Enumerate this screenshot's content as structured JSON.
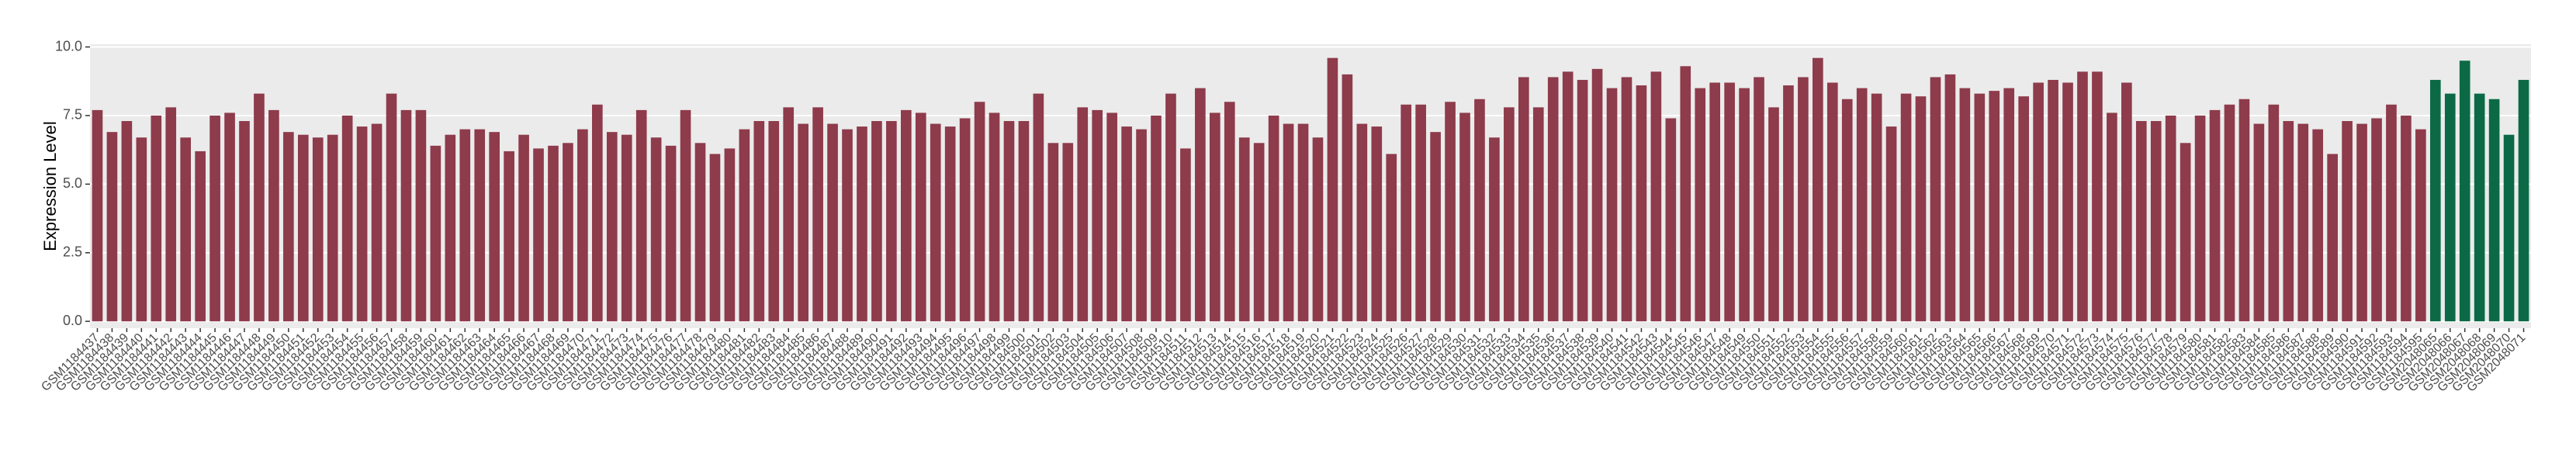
{
  "chart_data": {
    "type": "bar",
    "y_label": "Expression Level",
    "ylim": [
      -0.25,
      10.1
    ],
    "yticks": [
      {
        "value": 0,
        "label": "0.0"
      },
      {
        "value": 2.5,
        "label": "2.5"
      },
      {
        "value": 5,
        "label": "5.0"
      },
      {
        "value": 7.5,
        "label": "7.5"
      },
      {
        "value": 10,
        "label": "10.0"
      }
    ],
    "grid": true,
    "categories": [
      "GSM1184437",
      "GSM1184438",
      "GSM1184439",
      "GSM1184440",
      "GSM1184441",
      "GSM1184442",
      "GSM1184443",
      "GSM1184444",
      "GSM1184445",
      "GSM1184446",
      "GSM1184447",
      "GSM1184448",
      "GSM1184449",
      "GSM1184450",
      "GSM1184451",
      "GSM1184452",
      "GSM1184453",
      "GSM1184454",
      "GSM1184455",
      "GSM1184456",
      "GSM1184457",
      "GSM1184458",
      "GSM1184459",
      "GSM1184460",
      "GSM1184461",
      "GSM1184462",
      "GSM1184463",
      "GSM1184464",
      "GSM1184465",
      "GSM1184466",
      "GSM1184467",
      "GSM1184468",
      "GSM1184469",
      "GSM1184470",
      "GSM1184471",
      "GSM1184472",
      "GSM1184473",
      "GSM1184474",
      "GSM1184475",
      "GSM1184476",
      "GSM1184477",
      "GSM1184478",
      "GSM1184479",
      "GSM1184480",
      "GSM1184481",
      "GSM1184482",
      "GSM1184483",
      "GSM1184484",
      "GSM1184485",
      "GSM1184486",
      "GSM1184487",
      "GSM1184488",
      "GSM1184489",
      "GSM1184490",
      "GSM1184491",
      "GSM1184492",
      "GSM1184493",
      "GSM1184494",
      "GSM1184495",
      "GSM1184496",
      "GSM1184497",
      "GSM1184498",
      "GSM1184499",
      "GSM1184500",
      "GSM1184501",
      "GSM1184502",
      "GSM1184503",
      "GSM1184504",
      "GSM1184505",
      "GSM1184506",
      "GSM1184507",
      "GSM1184508",
      "GSM1184509",
      "GSM1184510",
      "GSM1184511",
      "GSM1184512",
      "GSM1184513",
      "GSM1184514",
      "GSM1184515",
      "GSM1184516",
      "GSM1184517",
      "GSM1184518",
      "GSM1184519",
      "GSM1184520",
      "GSM1184521",
      "GSM1184522",
      "GSM1184523",
      "GSM1184524",
      "GSM1184525",
      "GSM1184526",
      "GSM1184527",
      "GSM1184528",
      "GSM1184529",
      "GSM1184530",
      "GSM1184531",
      "GSM1184532",
      "GSM1184533",
      "GSM1184534",
      "GSM1184535",
      "GSM1184536",
      "GSM1184537",
      "GSM1184538",
      "GSM1184539",
      "GSM1184540",
      "GSM1184541",
      "GSM1184542",
      "GSM1184543",
      "GSM1184544",
      "GSM1184545",
      "GSM1184546",
      "GSM1184547",
      "GSM1184548",
      "GSM1184549",
      "GSM1184550",
      "GSM1184551",
      "GSM1184552",
      "GSM1184553",
      "GSM1184554",
      "GSM1184555",
      "GSM1184556",
      "GSM1184557",
      "GSM1184558",
      "GSM1184559",
      "GSM1184560",
      "GSM1184561",
      "GSM1184562",
      "GSM1184563",
      "GSM1184564",
      "GSM1184565",
      "GSM1184566",
      "GSM1184567",
      "GSM1184568",
      "GSM1184569",
      "GSM1184570",
      "GSM1184571",
      "GSM1184572",
      "GSM1184573",
      "GSM1184574",
      "GSM1184575",
      "GSM1184576",
      "GSM1184577",
      "GSM1184578",
      "GSM1184579",
      "GSM1184580",
      "GSM1184581",
      "GSM1184582",
      "GSM1184583",
      "GSM1184584",
      "GSM1184585",
      "GSM1184586",
      "GSM1184587",
      "GSM1184588",
      "GSM1184589",
      "GSM1184590",
      "GSM1184591",
      "GSM1184592",
      "GSM1184593",
      "GSM1184594",
      "GSM1184595",
      "GSM2048065",
      "GSM2048066",
      "GSM2048067",
      "GSM2048068",
      "GSM2048069",
      "GSM2048070",
      "GSM2048071"
    ],
    "series": [
      {
        "color": "#8e3b4b",
        "values": [
          7.7,
          6.9,
          7.3,
          6.7,
          7.5,
          7.8,
          6.7,
          6.2,
          7.5,
          7.6,
          7.3,
          8.3,
          7.7,
          6.9,
          6.8,
          6.7,
          6.8,
          7.5,
          7.1,
          7.2,
          8.3,
          7.7,
          7.7,
          6.4,
          6.8,
          7.0,
          7.0,
          6.9,
          6.2,
          6.8,
          6.3,
          6.4,
          6.5,
          7.0,
          7.9,
          6.9,
          6.8,
          7.7,
          6.7,
          6.4,
          7.7,
          6.5,
          6.1,
          6.3,
          7.0,
          7.3,
          7.3,
          7.8,
          7.2,
          7.8,
          7.2,
          7.0,
          7.1,
          7.3,
          7.3,
          7.7,
          7.6,
          7.2,
          7.1,
          7.4,
          8.0,
          7.6,
          7.3,
          7.3,
          8.3,
          6.5,
          6.5,
          7.8,
          7.7,
          7.6,
          7.1,
          7.0,
          7.5,
          8.3,
          6.3,
          8.5,
          7.6,
          8.0,
          6.7,
          6.5,
          7.5,
          7.2,
          7.2,
          6.7,
          9.6,
          9.0,
          7.2,
          7.1,
          6.1,
          7.9,
          7.9,
          6.9,
          8.0,
          7.6,
          8.1,
          6.7,
          7.8,
          8.9,
          7.8,
          8.9,
          9.1,
          8.8,
          9.2,
          8.5,
          8.9,
          8.6,
          9.1,
          7.4,
          9.3,
          8.5,
          8.7,
          8.7,
          8.5,
          8.9,
          7.8,
          8.6,
          8.9,
          9.6,
          8.7,
          8.1,
          8.5,
          8.3,
          7.1,
          8.3,
          8.2,
          8.9,
          9.0,
          8.5,
          8.3,
          8.4,
          8.5,
          8.2,
          8.7,
          8.8,
          8.7,
          9.1,
          9.1,
          7.6,
          8.7,
          7.3,
          7.3,
          7.5,
          6.5,
          7.5,
          7.7,
          7.9,
          8.1,
          7.2,
          7.9,
          7.3,
          7.2,
          7.0,
          6.1,
          7.3,
          7.2,
          7.4,
          7.9,
          7.5,
          7.0,
          null,
          null,
          null,
          null,
          null,
          null,
          null
        ]
      },
      {
        "color": "#0b6a45",
        "values": [
          null,
          null,
          null,
          null,
          null,
          null,
          null,
          null,
          null,
          null,
          null,
          null,
          null,
          null,
          null,
          null,
          null,
          null,
          null,
          null,
          null,
          null,
          null,
          null,
          null,
          null,
          null,
          null,
          null,
          null,
          null,
          null,
          null,
          null,
          null,
          null,
          null,
          null,
          null,
          null,
          null,
          null,
          null,
          null,
          null,
          null,
          null,
          null,
          null,
          null,
          null,
          null,
          null,
          null,
          null,
          null,
          null,
          null,
          null,
          null,
          null,
          null,
          null,
          null,
          null,
          null,
          null,
          null,
          null,
          null,
          null,
          null,
          null,
          null,
          null,
          null,
          null,
          null,
          null,
          null,
          null,
          null,
          null,
          null,
          null,
          null,
          null,
          null,
          null,
          null,
          null,
          null,
          null,
          null,
          null,
          null,
          null,
          null,
          null,
          null,
          null,
          null,
          null,
          null,
          null,
          null,
          null,
          null,
          null,
          null,
          null,
          null,
          null,
          null,
          null,
          null,
          null,
          null,
          null,
          null,
          null,
          null,
          null,
          null,
          null,
          null,
          null,
          null,
          null,
          null,
          null,
          null,
          null,
          null,
          null,
          null,
          null,
          null,
          null,
          null,
          null,
          null,
          null,
          null,
          null,
          null,
          null,
          null,
          null,
          null,
          null,
          null,
          null,
          null,
          null,
          null,
          null,
          null,
          null,
          8.8,
          8.3,
          9.5,
          8.3,
          8.1,
          6.8,
          8.8
        ]
      }
    ]
  }
}
